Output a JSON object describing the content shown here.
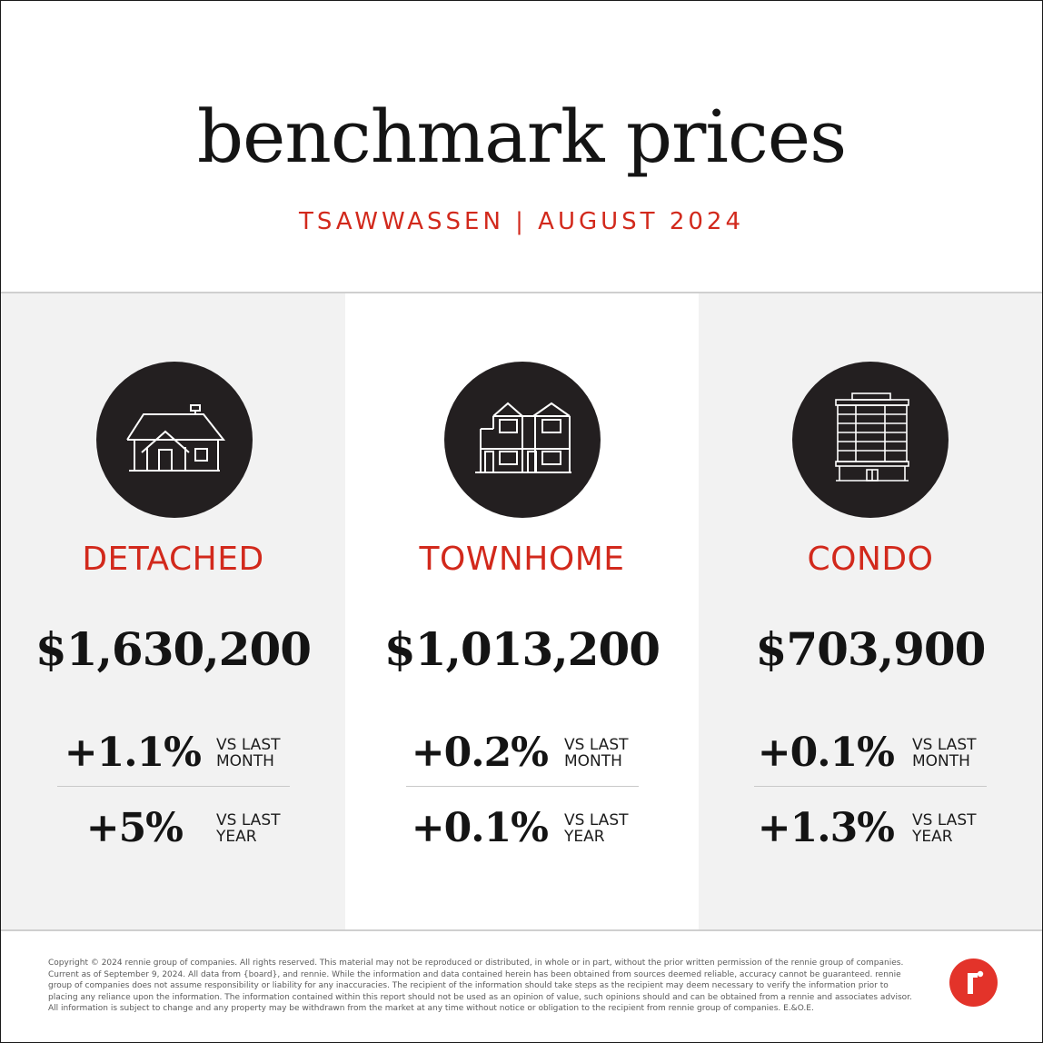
{
  "header": {
    "title": "benchmark prices",
    "subtitle": "TSAWWASSEN | AUGUST 2024"
  },
  "columns": [
    {
      "icon": "house-icon",
      "type": "DETACHED",
      "price": "$1,630,200",
      "month_change": "+1.1%",
      "month_label_1": "VS LAST",
      "month_label_2": "MONTH",
      "year_change": "+5%",
      "year_label_1": "VS LAST",
      "year_label_2": "YEAR"
    },
    {
      "icon": "townhome-icon",
      "type": "TOWNHOME",
      "price": "$1,013,200",
      "month_change": "+0.2%",
      "month_label_1": "VS LAST",
      "month_label_2": "MONTH",
      "year_change": "+0.1%",
      "year_label_1": "VS LAST",
      "year_label_2": "YEAR"
    },
    {
      "icon": "condo-building-icon",
      "type": "CONDO",
      "price": "$703,900",
      "month_change": "+0.1%",
      "month_label_1": "VS LAST",
      "month_label_2": "MONTH",
      "year_change": "+1.3%",
      "year_label_1": "VS LAST",
      "year_label_2": "YEAR"
    }
  ],
  "footer": {
    "disclaimer": "Copyright © 2024 rennie group of companies. All rights reserved. This material may not be reproduced or distributed, in whole or in part, without the prior written permission of the rennie group of companies. Current as of September 9, 2024. All data from {board}, and rennie. While the information and data contained herein has been obtained from sources deemed reliable, accuracy cannot be guaranteed. rennie group of companies does not assume responsibility or liability for any inaccuracies. The recipient of the information should take steps as the recipient may deem necessary to verify the information prior to placing any reliance upon the information. The information contained within this report should not be used as an opinion of value, such opinions should and can be obtained from a rennie and associates advisor. All information is subject to change and any property may be withdrawn from the market at any time without notice or obligation to the recipient from rennie group of companies. E.&O.E.",
    "logo": "rennie-logo"
  },
  "colors": {
    "accent": "#d2291c",
    "logo_red": "#e3332a",
    "circle": "#231f20",
    "panel_gray": "#f2f2f2"
  }
}
